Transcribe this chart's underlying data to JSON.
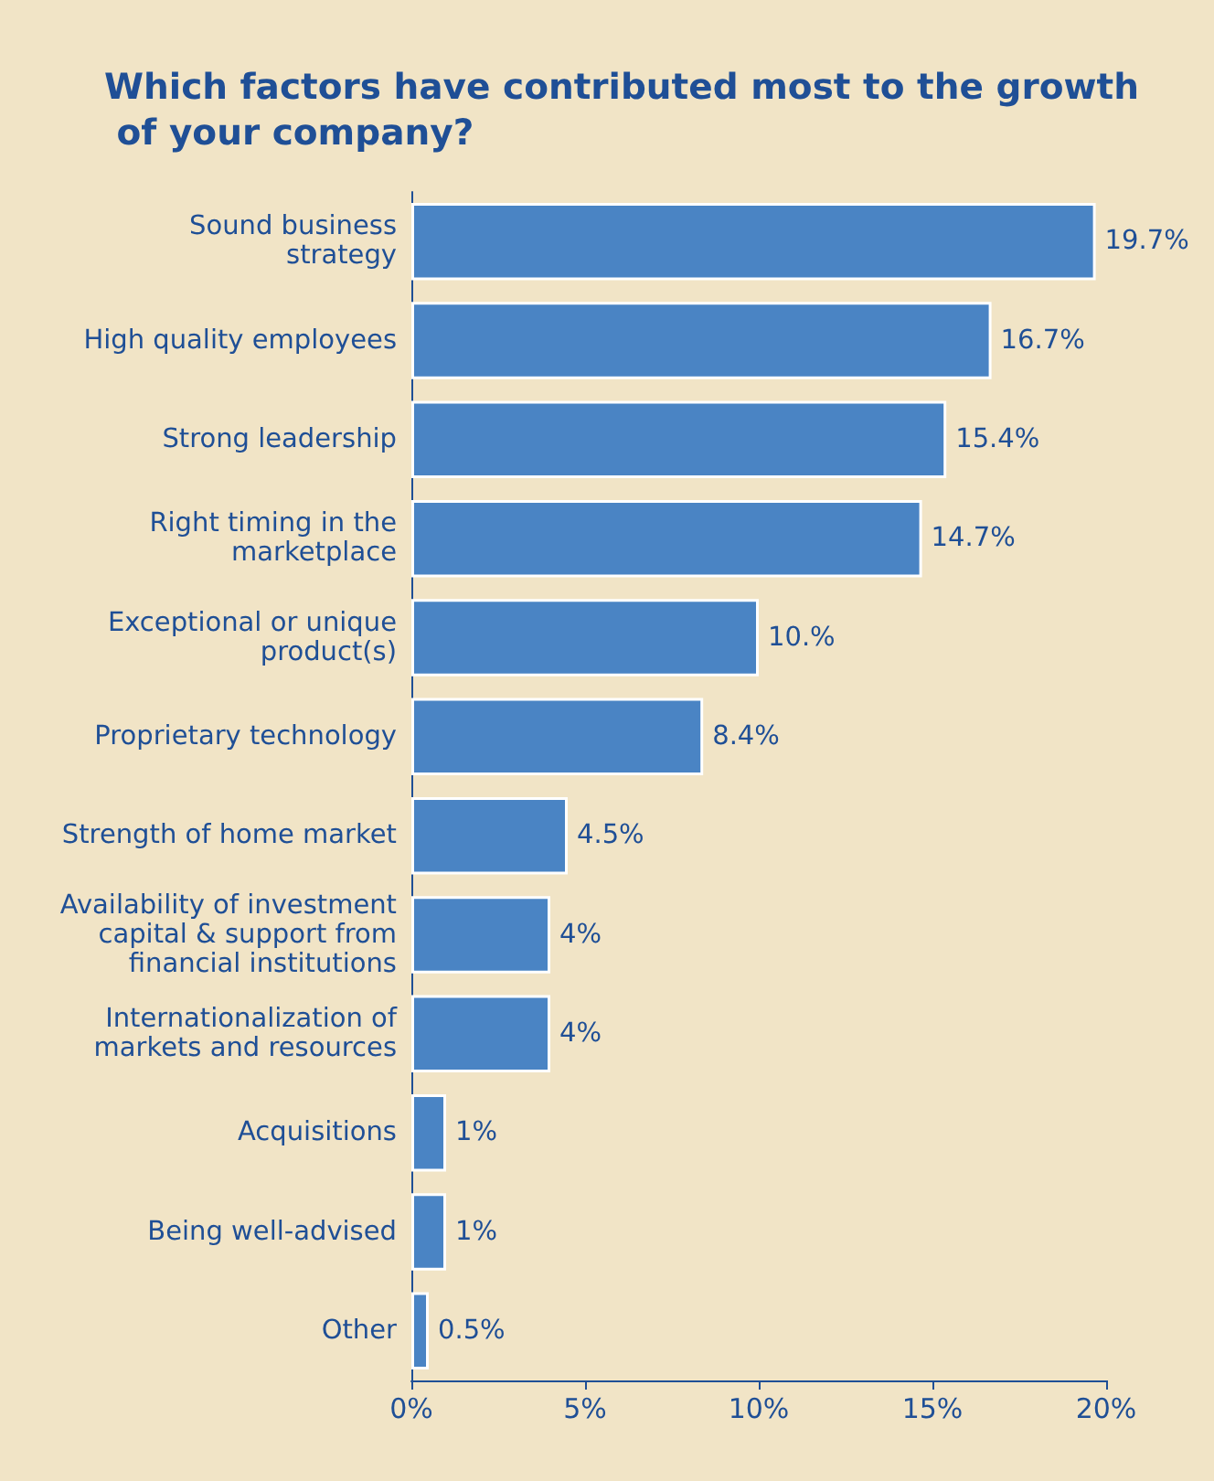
{
  "chart_data": {
    "type": "bar",
    "orientation": "horizontal",
    "title": "Which factors have contributed most to the growth of your company?",
    "categories": [
      "Sound business\nstrategy",
      "High quality employees",
      "Strong leadership",
      "Right timing in the\nmarketplace",
      "Exceptional or unique\nproduct(s)",
      "Proprietary technology",
      "Strength of home market",
      "Availability of investment\ncapital & support from\nfinancial institutions",
      "Internationalization of\nmarkets and resources",
      "Acquisitions",
      "Being well-advised",
      "Other"
    ],
    "values": [
      19.7,
      16.7,
      15.4,
      14.7,
      10,
      8.4,
      4.5,
      4,
      4,
      1,
      1,
      0.5
    ],
    "value_labels": [
      "19.7%",
      "16.7%",
      "15.4%",
      "14.7%",
      "10.%",
      "8.4%",
      "4.5%",
      "4%",
      "4%",
      "1%",
      "1%",
      "0.5%"
    ],
    "color": "#4a84c4",
    "xlim": [
      0,
      20
    ],
    "xticks": [
      {
        "value": 0,
        "label": "0%"
      },
      {
        "value": 5,
        "label": "5%"
      },
      {
        "value": 10,
        "label": "10%"
      },
      {
        "value": 15,
        "label": "15%"
      },
      {
        "value": 20,
        "label": "20%"
      }
    ],
    "grid": false
  }
}
